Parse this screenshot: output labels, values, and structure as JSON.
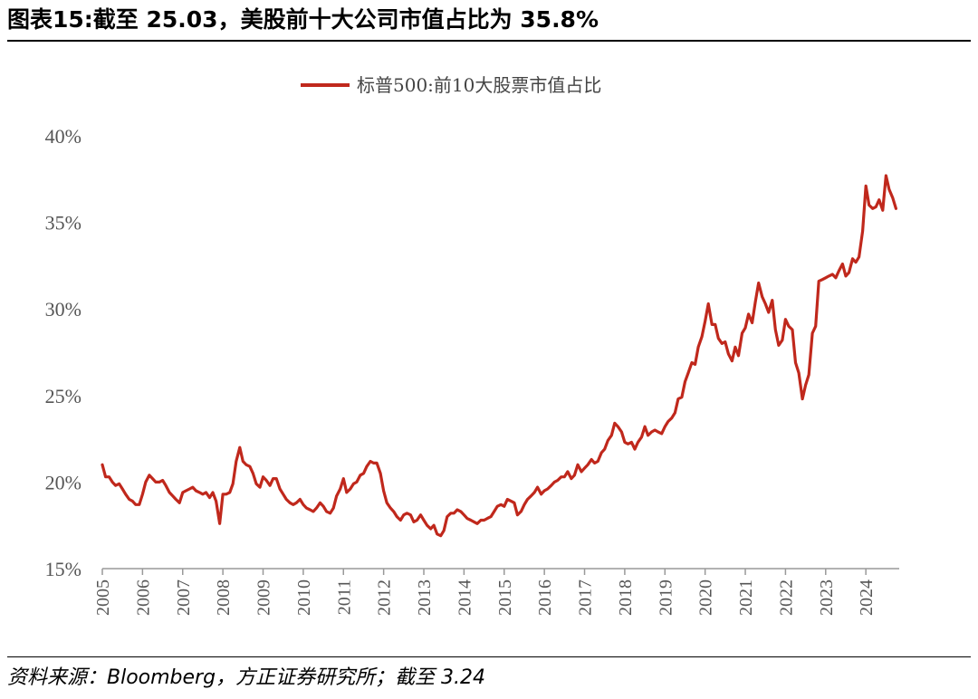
{
  "title": "图表15:截至 25.03，美股前十大公司市值占比为 35.8%",
  "source": "资料来源：Bloomberg，方正证券研究所；截至 3.24",
  "colors": {
    "series": "#c0281c",
    "axis": "#999999",
    "text": "#555555"
  },
  "chart_data": {
    "type": "line",
    "ylim": [
      15,
      40
    ],
    "ytick_labels": [
      "15%",
      "20%",
      "25%",
      "30%",
      "35%",
      "40%"
    ],
    "yticks": [
      15,
      20,
      25,
      30,
      35,
      40
    ],
    "xlim": [
      2005,
      2024.83
    ],
    "xticks": [
      2005,
      2006,
      2007,
      2008,
      2009,
      2010,
      2011,
      2012,
      2013,
      2014,
      2015,
      2016,
      2017,
      2018,
      2019,
      2020,
      2021,
      2022,
      2023,
      2024
    ],
    "xtick_labels": [
      "2005",
      "2006",
      "2007",
      "2008",
      "2009",
      "2010",
      "2011",
      "2012",
      "2013",
      "2014",
      "2015",
      "2016",
      "2017",
      "2018",
      "2019",
      "2020",
      "2021",
      "2022",
      "2023",
      "2024"
    ],
    "legend_position": "top-center",
    "grid": false,
    "series": [
      {
        "name": "标普500:前10大股票市值占比",
        "points": [
          [
            2005.0,
            21.0
          ],
          [
            2005.08,
            20.3
          ],
          [
            2005.17,
            20.3
          ],
          [
            2005.25,
            20.0
          ],
          [
            2005.33,
            19.8
          ],
          [
            2005.42,
            19.9
          ],
          [
            2005.5,
            19.6
          ],
          [
            2005.58,
            19.3
          ],
          [
            2005.67,
            19.0
          ],
          [
            2005.75,
            18.9
          ],
          [
            2005.83,
            18.7
          ],
          [
            2005.92,
            18.7
          ],
          [
            2006.0,
            19.3
          ],
          [
            2006.08,
            20.0
          ],
          [
            2006.17,
            20.4
          ],
          [
            2006.25,
            20.2
          ],
          [
            2006.33,
            20.0
          ],
          [
            2006.42,
            20.0
          ],
          [
            2006.5,
            20.1
          ],
          [
            2006.58,
            19.8
          ],
          [
            2006.67,
            19.4
          ],
          [
            2006.75,
            19.2
          ],
          [
            2006.83,
            19.0
          ],
          [
            2006.92,
            18.8
          ],
          [
            2007.0,
            19.4
          ],
          [
            2007.08,
            19.5
          ],
          [
            2007.17,
            19.6
          ],
          [
            2007.25,
            19.7
          ],
          [
            2007.33,
            19.5
          ],
          [
            2007.42,
            19.4
          ],
          [
            2007.5,
            19.3
          ],
          [
            2007.58,
            19.4
          ],
          [
            2007.67,
            19.1
          ],
          [
            2007.75,
            19.4
          ],
          [
            2007.83,
            18.9
          ],
          [
            2007.92,
            17.6
          ],
          [
            2008.0,
            19.3
          ],
          [
            2008.08,
            19.3
          ],
          [
            2008.17,
            19.4
          ],
          [
            2008.25,
            19.9
          ],
          [
            2008.33,
            21.2
          ],
          [
            2008.42,
            22.0
          ],
          [
            2008.5,
            21.2
          ],
          [
            2008.58,
            21.0
          ],
          [
            2008.67,
            20.9
          ],
          [
            2008.75,
            20.5
          ],
          [
            2008.83,
            19.9
          ],
          [
            2008.92,
            19.7
          ],
          [
            2009.0,
            20.3
          ],
          [
            2009.08,
            20.1
          ],
          [
            2009.17,
            19.8
          ],
          [
            2009.25,
            20.2
          ],
          [
            2009.33,
            20.2
          ],
          [
            2009.42,
            19.6
          ],
          [
            2009.5,
            19.3
          ],
          [
            2009.58,
            19.0
          ],
          [
            2009.67,
            18.8
          ],
          [
            2009.75,
            18.7
          ],
          [
            2009.83,
            18.8
          ],
          [
            2009.92,
            19.0
          ],
          [
            2010.0,
            18.7
          ],
          [
            2010.08,
            18.5
          ],
          [
            2010.17,
            18.4
          ],
          [
            2010.25,
            18.3
          ],
          [
            2010.33,
            18.5
          ],
          [
            2010.42,
            18.8
          ],
          [
            2010.5,
            18.6
          ],
          [
            2010.58,
            18.3
          ],
          [
            2010.67,
            18.2
          ],
          [
            2010.75,
            18.5
          ],
          [
            2010.83,
            19.2
          ],
          [
            2010.92,
            19.6
          ],
          [
            2011.0,
            20.2
          ],
          [
            2011.08,
            19.4
          ],
          [
            2011.17,
            19.6
          ],
          [
            2011.25,
            19.9
          ],
          [
            2011.33,
            20.0
          ],
          [
            2011.42,
            20.4
          ],
          [
            2011.5,
            20.5
          ],
          [
            2011.58,
            20.9
          ],
          [
            2011.67,
            21.2
          ],
          [
            2011.75,
            21.1
          ],
          [
            2011.83,
            21.1
          ],
          [
            2011.92,
            20.5
          ],
          [
            2012.0,
            19.5
          ],
          [
            2012.08,
            18.8
          ],
          [
            2012.17,
            18.5
          ],
          [
            2012.25,
            18.3
          ],
          [
            2012.33,
            18.0
          ],
          [
            2012.42,
            17.8
          ],
          [
            2012.5,
            18.1
          ],
          [
            2012.58,
            18.2
          ],
          [
            2012.67,
            18.1
          ],
          [
            2012.75,
            17.7
          ],
          [
            2012.83,
            17.8
          ],
          [
            2012.92,
            18.1
          ],
          [
            2013.0,
            17.8
          ],
          [
            2013.08,
            17.5
          ],
          [
            2013.17,
            17.3
          ],
          [
            2013.25,
            17.5
          ],
          [
            2013.33,
            17.0
          ],
          [
            2013.42,
            16.9
          ],
          [
            2013.5,
            17.2
          ],
          [
            2013.58,
            18.0
          ],
          [
            2013.67,
            18.2
          ],
          [
            2013.75,
            18.2
          ],
          [
            2013.83,
            18.4
          ],
          [
            2013.92,
            18.3
          ],
          [
            2014.0,
            18.1
          ],
          [
            2014.08,
            17.9
          ],
          [
            2014.17,
            17.8
          ],
          [
            2014.25,
            17.7
          ],
          [
            2014.33,
            17.6
          ],
          [
            2014.42,
            17.8
          ],
          [
            2014.5,
            17.8
          ],
          [
            2014.58,
            17.9
          ],
          [
            2014.67,
            18.0
          ],
          [
            2014.75,
            18.3
          ],
          [
            2014.83,
            18.6
          ],
          [
            2014.92,
            18.7
          ],
          [
            2015.0,
            18.6
          ],
          [
            2015.08,
            19.0
          ],
          [
            2015.17,
            18.9
          ],
          [
            2015.25,
            18.8
          ],
          [
            2015.33,
            18.1
          ],
          [
            2015.42,
            18.3
          ],
          [
            2015.5,
            18.7
          ],
          [
            2015.58,
            19.0
          ],
          [
            2015.67,
            19.2
          ],
          [
            2015.75,
            19.4
          ],
          [
            2015.83,
            19.7
          ],
          [
            2015.92,
            19.3
          ],
          [
            2016.0,
            19.5
          ],
          [
            2016.08,
            19.6
          ],
          [
            2016.17,
            19.8
          ],
          [
            2016.25,
            20.0
          ],
          [
            2016.33,
            20.1
          ],
          [
            2016.42,
            20.3
          ],
          [
            2016.5,
            20.3
          ],
          [
            2016.58,
            20.6
          ],
          [
            2016.67,
            20.2
          ],
          [
            2016.75,
            20.4
          ],
          [
            2016.83,
            21.0
          ],
          [
            2016.92,
            20.6
          ],
          [
            2017.0,
            20.8
          ],
          [
            2017.08,
            21.0
          ],
          [
            2017.17,
            21.3
          ],
          [
            2017.25,
            21.1
          ],
          [
            2017.33,
            21.2
          ],
          [
            2017.42,
            21.7
          ],
          [
            2017.5,
            21.9
          ],
          [
            2017.58,
            22.4
          ],
          [
            2017.67,
            22.7
          ],
          [
            2017.75,
            23.4
          ],
          [
            2017.83,
            23.2
          ],
          [
            2017.92,
            22.9
          ],
          [
            2018.0,
            22.3
          ],
          [
            2018.08,
            22.2
          ],
          [
            2018.17,
            22.3
          ],
          [
            2018.25,
            21.9
          ],
          [
            2018.33,
            22.3
          ],
          [
            2018.42,
            22.6
          ],
          [
            2018.5,
            23.2
          ],
          [
            2018.58,
            22.7
          ],
          [
            2018.67,
            22.9
          ],
          [
            2018.75,
            23.0
          ],
          [
            2018.83,
            22.9
          ],
          [
            2018.92,
            22.8
          ],
          [
            2019.0,
            23.2
          ],
          [
            2019.08,
            23.5
          ],
          [
            2019.17,
            23.7
          ],
          [
            2019.25,
            24.0
          ],
          [
            2019.33,
            24.8
          ],
          [
            2019.42,
            24.9
          ],
          [
            2019.5,
            25.8
          ],
          [
            2019.58,
            26.3
          ],
          [
            2019.67,
            26.9
          ],
          [
            2019.75,
            26.8
          ],
          [
            2019.83,
            27.8
          ],
          [
            2019.92,
            28.4
          ],
          [
            2020.0,
            29.3
          ],
          [
            2020.08,
            30.3
          ],
          [
            2020.17,
            29.1
          ],
          [
            2020.25,
            29.1
          ],
          [
            2020.33,
            28.3
          ],
          [
            2020.42,
            28.0
          ],
          [
            2020.5,
            28.1
          ],
          [
            2020.58,
            27.4
          ],
          [
            2020.67,
            27.0
          ],
          [
            2020.75,
            27.8
          ],
          [
            2020.83,
            27.3
          ],
          [
            2020.92,
            28.6
          ],
          [
            2021.0,
            28.9
          ],
          [
            2021.08,
            29.7
          ],
          [
            2021.17,
            29.2
          ],
          [
            2021.25,
            30.4
          ],
          [
            2021.33,
            31.5
          ],
          [
            2021.42,
            30.7
          ],
          [
            2021.5,
            30.3
          ],
          [
            2021.58,
            29.8
          ],
          [
            2021.67,
            30.5
          ],
          [
            2021.75,
            28.8
          ],
          [
            2021.83,
            27.9
          ],
          [
            2021.92,
            28.2
          ],
          [
            2022.0,
            29.4
          ],
          [
            2022.08,
            29.0
          ],
          [
            2022.17,
            28.8
          ],
          [
            2022.25,
            26.9
          ],
          [
            2022.33,
            26.3
          ],
          [
            2022.42,
            24.8
          ],
          [
            2022.5,
            25.6
          ],
          [
            2022.58,
            26.2
          ],
          [
            2022.67,
            28.6
          ],
          [
            2022.75,
            29.0
          ],
          [
            2022.83,
            31.6
          ],
          [
            2022.92,
            31.7
          ],
          [
            2023.0,
            31.8
          ],
          [
            2023.08,
            31.9
          ],
          [
            2023.17,
            32.0
          ],
          [
            2023.25,
            31.8
          ],
          [
            2023.33,
            32.2
          ],
          [
            2023.42,
            32.6
          ],
          [
            2023.5,
            31.9
          ],
          [
            2023.58,
            32.1
          ],
          [
            2023.67,
            32.9
          ],
          [
            2023.75,
            32.7
          ],
          [
            2023.83,
            33.0
          ],
          [
            2023.92,
            34.5
          ],
          [
            2024.0,
            37.1
          ],
          [
            2024.08,
            36.0
          ],
          [
            2024.17,
            35.8
          ],
          [
            2024.25,
            35.9
          ],
          [
            2024.33,
            36.3
          ],
          [
            2024.42,
            35.7
          ],
          [
            2024.5,
            37.7
          ],
          [
            2024.58,
            36.9
          ],
          [
            2024.67,
            36.4
          ],
          [
            2024.75,
            35.8
          ]
        ]
      }
    ]
  }
}
